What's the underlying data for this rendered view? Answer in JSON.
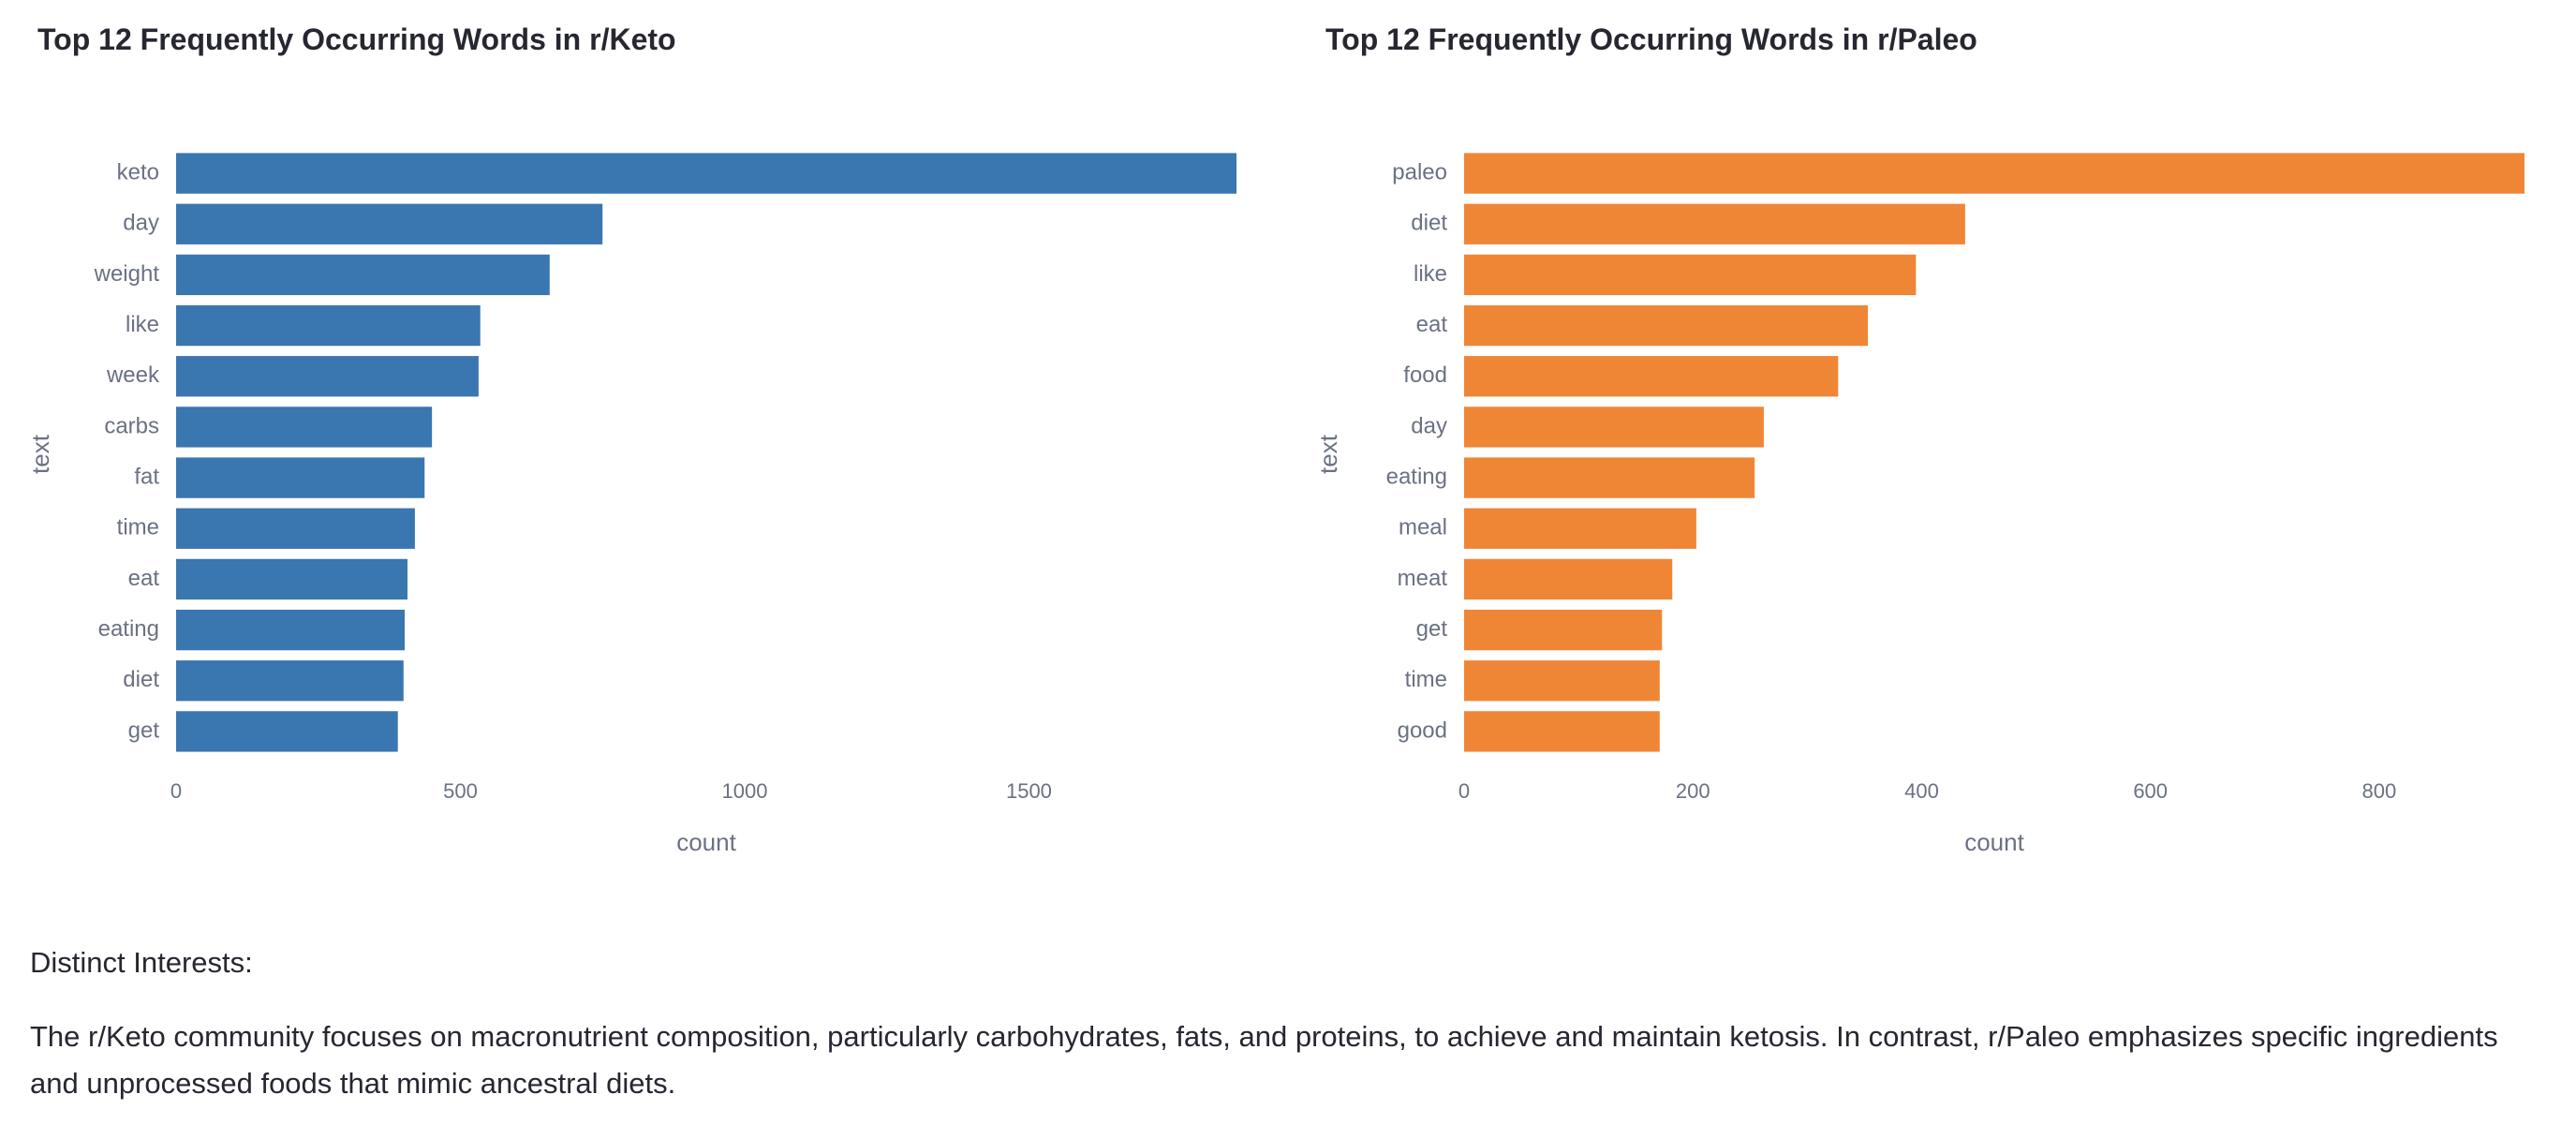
{
  "chart_data": [
    {
      "type": "bar",
      "orientation": "horizontal",
      "title": "Top 12 Frequently Occurring Words in r/Keto",
      "xlabel": "count",
      "ylabel": "text",
      "color": "#3a76b0",
      "categories": [
        "keto",
        "day",
        "weight",
        "like",
        "week",
        "carbs",
        "fat",
        "time",
        "eat",
        "eating",
        "diet",
        "get"
      ],
      "values": [
        1865,
        750,
        657,
        535,
        532,
        450,
        437,
        420,
        407,
        402,
        400,
        390
      ],
      "xlim": [
        0,
        1865
      ],
      "xticks": [
        0,
        500,
        1000,
        1500
      ],
      "xtick_labels": [
        "0",
        "500",
        "1000",
        "1500"
      ],
      "grid": false,
      "legend": "none"
    },
    {
      "type": "bar",
      "orientation": "horizontal",
      "title": "Top 12 Frequently Occurring Words in r/Paleo",
      "xlabel": "count",
      "ylabel": "text",
      "color": "#ef8636",
      "categories": [
        "paleo",
        "diet",
        "like",
        "eat",
        "food",
        "day",
        "eating",
        "meal",
        "meat",
        "get",
        "time",
        "good"
      ],
      "values": [
        927,
        438,
        395,
        353,
        327,
        262,
        254,
        203,
        182,
        173,
        171,
        171
      ],
      "xlim": [
        0,
        927
      ],
      "xticks": [
        0,
        200,
        400,
        600,
        800
      ],
      "xtick_labels": [
        "0",
        "200",
        "400",
        "600",
        "800"
      ],
      "grid": false,
      "legend": "none"
    }
  ],
  "summary": {
    "heading": "Distinct Interests:",
    "body": "The r/Keto community focuses on macronutrient composition, particularly carbohydrates, fats, and proteins, to achieve and maintain ketosis. In contrast, r/Paleo emphasizes specific ingredients and unprocessed foods that mimic ancestral diets."
  }
}
